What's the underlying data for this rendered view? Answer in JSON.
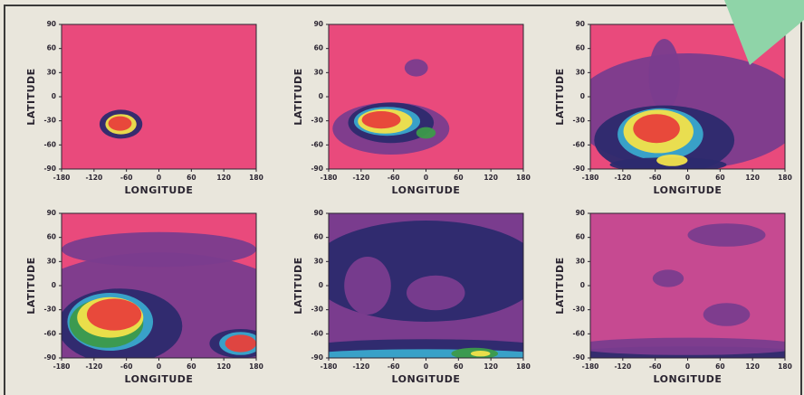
{
  "chart_data": [
    {
      "type": "map",
      "xlabel": "LONGITUDE",
      "ylabel": "LATITUDE",
      "xlim": [
        -180,
        180
      ],
      "ylim": [
        -90,
        90
      ],
      "xticks": [
        -180,
        -120,
        -60,
        0,
        60,
        120,
        180
      ],
      "yticks": [
        90,
        60,
        30,
        0,
        -30,
        -60,
        -90
      ]
    },
    {
      "type": "map",
      "xlabel": "LONGITUDE",
      "ylabel": "LATITUDE",
      "xlim": [
        -180,
        180
      ],
      "ylim": [
        -90,
        90
      ],
      "xticks": [
        -180,
        -120,
        -60,
        0,
        60,
        120,
        180
      ],
      "yticks": [
        90,
        60,
        30,
        0,
        -30,
        -60,
        -90
      ]
    },
    {
      "type": "map",
      "xlabel": "LONGITUDE",
      "ylabel": "LATITUDE",
      "xlim": [
        -180,
        180
      ],
      "ylim": [
        -90,
        90
      ],
      "xticks": [
        -180,
        -120,
        -60,
        0,
        60,
        120,
        180
      ],
      "yticks": [
        90,
        60,
        30,
        0,
        -30,
        -60,
        -90
      ]
    },
    {
      "type": "map",
      "xlabel": "LONGITUDE",
      "ylabel": "LATITUDE",
      "xlim": [
        -180,
        180
      ],
      "ylim": [
        -90,
        90
      ],
      "xticks": [
        -180,
        -120,
        -60,
        0,
        60,
        120,
        180
      ],
      "yticks": [
        90,
        60,
        30,
        0,
        -30,
        -60,
        -90
      ]
    },
    {
      "type": "map",
      "xlabel": "LONGITUDE",
      "ylabel": "LATITUDE",
      "xlim": [
        -180,
        180
      ],
      "ylim": [
        -90,
        90
      ],
      "xticks": [
        -180,
        -120,
        -60,
        0,
        60,
        120,
        180
      ],
      "yticks": [
        90,
        60,
        30,
        0,
        -30,
        -60,
        -90
      ]
    },
    {
      "type": "map",
      "xlabel": "LONGITUDE",
      "ylabel": "LATITUDE",
      "xlim": [
        -180,
        180
      ],
      "ylim": [
        -90,
        90
      ],
      "xticks": [
        -180,
        -120,
        -60,
        0,
        60,
        120,
        180
      ],
      "yticks": [
        90,
        60,
        30,
        0,
        -30,
        -60,
        -90
      ]
    }
  ]
}
